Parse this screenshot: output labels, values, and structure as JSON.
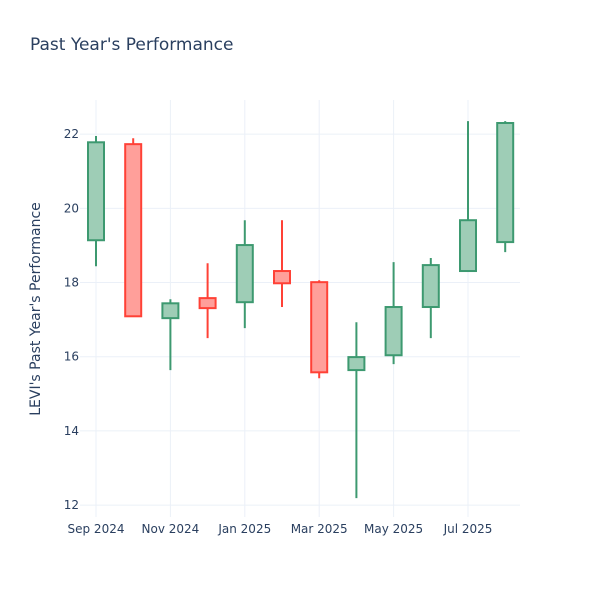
{
  "chart_data": {
    "type": "candlestick",
    "title": "Past Year's Performance",
    "xlabel": "",
    "ylabel": "LEVI's Past Year's Performance",
    "ylim": [
      11.68,
      22.92
    ],
    "grid": true,
    "colors": {
      "increasing": "#3d9970",
      "increasing_fill": "#9ecdb6",
      "decreasing": "#ff4136",
      "decreasing_fill": "#ff9f9a",
      "grid": "#ebf0f8",
      "text": "#2a3f5f"
    },
    "yticks": [
      12,
      14,
      16,
      18,
      20,
      22
    ],
    "xticks": [
      {
        "index": 0,
        "label": "Sep 2024"
      },
      {
        "index": 2,
        "label": "Nov 2024"
      },
      {
        "index": 4,
        "label": "Jan 2025"
      },
      {
        "index": 6,
        "label": "Mar 2025"
      },
      {
        "index": 8,
        "label": "May 2025"
      },
      {
        "index": 10,
        "label": "Jul 2025"
      }
    ],
    "candles": [
      {
        "month": "2024-09",
        "open": 19.14,
        "high": 21.95,
        "low": 18.44,
        "close": 21.78
      },
      {
        "month": "2024-10",
        "open": 21.73,
        "high": 21.89,
        "low": 17.09,
        "close": 17.09
      },
      {
        "month": "2024-11",
        "open": 17.04,
        "high": 17.55,
        "low": 15.64,
        "close": 17.44
      },
      {
        "month": "2024-12",
        "open": 17.58,
        "high": 18.52,
        "low": 16.5,
        "close": 17.31
      },
      {
        "month": "2025-01",
        "open": 17.47,
        "high": 19.68,
        "low": 16.77,
        "close": 19.01
      },
      {
        "month": "2025-02",
        "open": 18.31,
        "high": 19.68,
        "low": 17.34,
        "close": 17.98
      },
      {
        "month": "2025-03",
        "open": 18.01,
        "high": 18.06,
        "low": 15.42,
        "close": 15.58
      },
      {
        "month": "2025-04",
        "open": 15.64,
        "high": 16.93,
        "low": 12.19,
        "close": 15.99
      },
      {
        "month": "2025-05",
        "open": 16.04,
        "high": 18.55,
        "low": 15.8,
        "close": 17.34
      },
      {
        "month": "2025-06",
        "open": 17.34,
        "high": 18.66,
        "low": 16.5,
        "close": 18.47
      },
      {
        "month": "2025-07",
        "open": 18.31,
        "high": 22.35,
        "low": 18.31,
        "close": 19.68
      },
      {
        "month": "2025-08",
        "open": 19.09,
        "high": 22.35,
        "low": 18.82,
        "close": 22.3
      }
    ]
  }
}
